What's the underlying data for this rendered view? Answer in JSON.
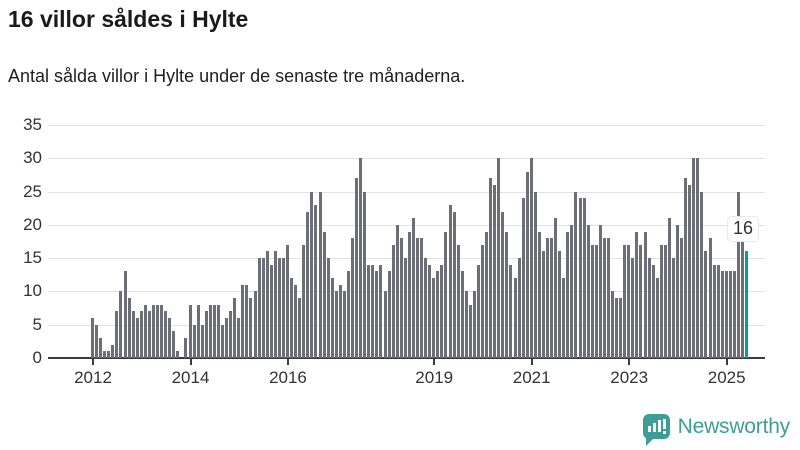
{
  "header": {
    "title": "16 villor såldes i Hylte",
    "subtitle": "Antal sålda villor i Hylte under de senaste tre månaderna."
  },
  "chart_data": {
    "type": "bar",
    "title": "16 villor såldes i Hylte",
    "subtitle": "Antal sålda villor i Hylte under de senaste tre månaderna.",
    "x_start": "2012-01",
    "x_unit": "month",
    "ylim": [
      0,
      35
    ],
    "grid": true,
    "legend": "none",
    "y_ticks": [
      0,
      5,
      10,
      15,
      20,
      25,
      30,
      35
    ],
    "x_ticks": [
      {
        "label": "2012",
        "month_index": 0
      },
      {
        "label": "2014",
        "month_index": 24
      },
      {
        "label": "2016",
        "month_index": 48
      },
      {
        "label": "2019",
        "month_index": 84
      },
      {
        "label": "2021",
        "month_index": 108
      },
      {
        "label": "2023",
        "month_index": 132
      },
      {
        "label": "2025",
        "month_index": 156
      }
    ],
    "values": [
      6,
      5,
      3,
      1,
      1,
      2,
      7,
      10,
      13,
      9,
      7,
      6,
      7,
      8,
      7,
      8,
      8,
      8,
      7,
      6,
      4,
      1,
      0,
      3,
      8,
      5,
      8,
      5,
      7,
      8,
      8,
      8,
      5,
      6,
      7,
      9,
      6,
      11,
      11,
      9,
      10,
      15,
      15,
      16,
      14,
      16,
      15,
      15,
      17,
      12,
      11,
      9,
      17,
      22,
      25,
      23,
      25,
      19,
      15,
      12,
      10,
      11,
      10,
      13,
      18,
      27,
      30,
      25,
      14,
      14,
      13,
      14,
      10,
      13,
      17,
      20,
      18,
      15,
      19,
      21,
      18,
      18,
      15,
      14,
      12,
      13,
      14,
      19,
      23,
      22,
      17,
      13,
      10,
      8,
      10,
      14,
      17,
      19,
      27,
      26,
      30,
      22,
      19,
      14,
      12,
      15,
      24,
      28,
      30,
      25,
      19,
      16,
      18,
      18,
      21,
      16,
      12,
      19,
      20,
      25,
      24,
      24,
      20,
      17,
      17,
      20,
      18,
      18,
      10,
      9,
      9,
      17,
      17,
      15,
      19,
      17,
      19,
      15,
      14,
      12,
      17,
      17,
      21,
      15,
      20,
      18,
      27,
      26,
      30,
      30,
      25,
      16,
      18,
      14,
      14,
      13,
      13,
      13,
      13,
      25,
      21,
      16
    ],
    "highlight_last_bar": true,
    "bar_color": "#6e6e76",
    "highlight_color": "#00a0a0",
    "annotation_label": "16",
    "annotation_value": 16
  },
  "footer": {
    "brand": "Newsworthy",
    "brand_color": "#3e9e97",
    "logo_icon": "bar-chart-speech-bubble-icon"
  }
}
